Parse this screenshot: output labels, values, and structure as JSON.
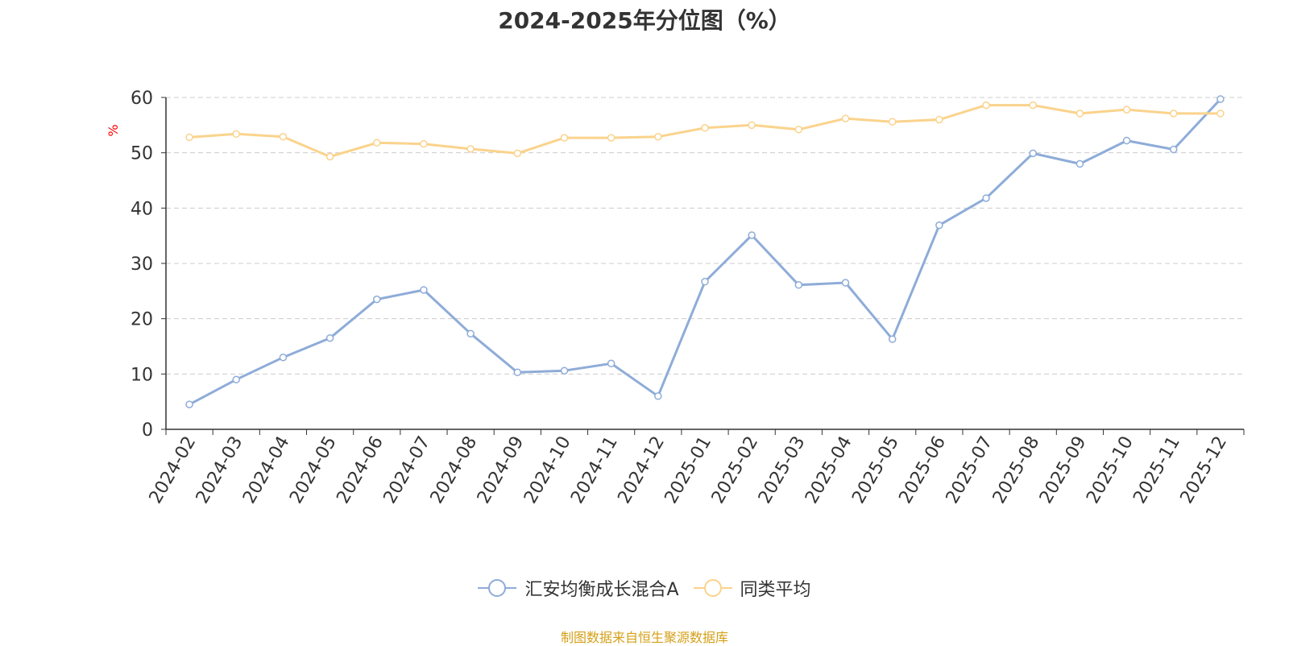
{
  "chart_data": {
    "type": "line",
    "title": "2024-2025年分位图（%）",
    "ylabel": "%",
    "xlabel": "",
    "ylim": [
      0,
      60
    ],
    "yticks": [
      0,
      10,
      20,
      30,
      40,
      50,
      60
    ],
    "grid": true,
    "legend_position": "bottom",
    "categories": [
      "2024-02",
      "2024-03",
      "2024-04",
      "2024-05",
      "2024-06",
      "2024-07",
      "2024-08",
      "2024-09",
      "2024-10",
      "2024-11",
      "2024-12",
      "2025-01",
      "2025-02",
      "2025-03",
      "2025-04",
      "2025-05",
      "2025-06",
      "2025-07",
      "2025-08",
      "2025-09",
      "2025-10",
      "2025-11",
      "2025-12"
    ],
    "series": [
      {
        "name": "汇安均衡成长混合A",
        "color": "#8eacd8",
        "values": [
          4.5,
          9.0,
          13.0,
          16.5,
          23.5,
          25.2,
          17.3,
          10.3,
          10.6,
          11.9,
          6.0,
          26.7,
          35.1,
          26.1,
          26.5,
          16.3,
          36.9,
          41.8,
          49.9,
          48.0,
          52.2,
          50.6,
          59.7
        ]
      },
      {
        "name": "同类平均",
        "color": "#fad38c",
        "values": [
          52.8,
          53.4,
          52.9,
          49.3,
          51.8,
          51.6,
          50.7,
          49.9,
          52.7,
          52.7,
          52.9,
          54.5,
          55.0,
          54.2,
          56.2,
          55.6,
          56.0,
          58.6,
          58.6,
          57.1,
          57.8,
          57.1,
          57.1
        ]
      }
    ]
  },
  "footer": {
    "source": "制图数据来自恒生聚源数据库"
  }
}
